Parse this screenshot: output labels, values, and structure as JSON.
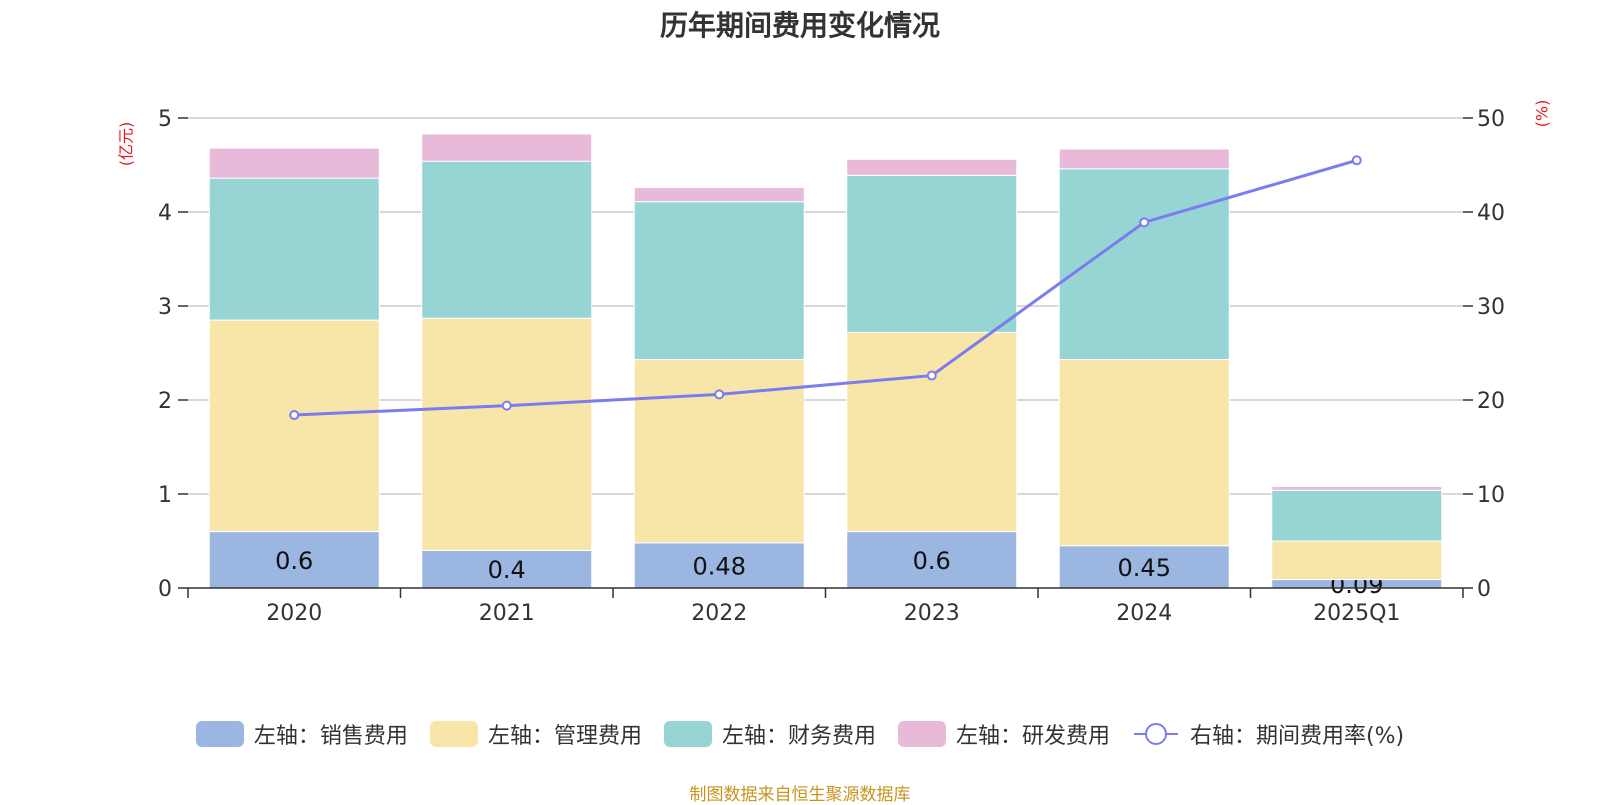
{
  "title": "历年期间费用变化情况",
  "left_unit": "(亿元)",
  "right_unit": "(%)",
  "source": "制图数据来自恒生聚源数据库",
  "legend": [
    {
      "label": "左轴：销售费用",
      "color": "#9bb7e1",
      "kind": "bar"
    },
    {
      "label": "左轴：管理费用",
      "color": "#f8e6a8",
      "kind": "bar"
    },
    {
      "label": "左轴：财务费用",
      "color": "#97d4d4",
      "kind": "bar"
    },
    {
      "label": "左轴：研发费用",
      "color": "#e8b9d9",
      "kind": "bar"
    },
    {
      "label": "右轴：期间费用率(%)",
      "color": "#7a7cf0",
      "kind": "line"
    }
  ],
  "chart_data": {
    "type": "bar",
    "stacked": true,
    "categories": [
      "2020",
      "2021",
      "2022",
      "2023",
      "2024",
      "2025Q1"
    ],
    "series": [
      {
        "name": "左轴：销售费用",
        "axis": "left",
        "color": "#9bb7e1",
        "values": [
          0.6,
          0.4,
          0.48,
          0.6,
          0.45,
          0.09
        ],
        "labels": [
          "0.6",
          "0.4",
          "0.48",
          "0.6",
          "0.45",
          "0.09"
        ]
      },
      {
        "name": "左轴：管理费用",
        "axis": "left",
        "color": "#f8e6a8",
        "values": [
          2.25,
          2.47,
          1.95,
          2.12,
          1.98,
          0.41
        ]
      },
      {
        "name": "左轴：财务费用",
        "axis": "left",
        "color": "#97d4d4",
        "values": [
          1.51,
          1.67,
          1.68,
          1.67,
          2.03,
          0.54
        ]
      },
      {
        "name": "左轴：研发费用",
        "axis": "left",
        "color": "#e8b9d9",
        "values": [
          0.32,
          0.29,
          0.15,
          0.17,
          0.21,
          0.04
        ]
      },
      {
        "name": "右轴：期间费用率(%)",
        "axis": "right",
        "type": "line",
        "color": "#7a7cf0",
        "values": [
          18.4,
          19.4,
          20.6,
          22.6,
          38.9,
          45.5
        ]
      }
    ],
    "left_axis": {
      "range": [
        0,
        5
      ],
      "ticks": [
        0,
        1,
        2,
        3,
        4,
        5
      ]
    },
    "right_axis": {
      "range": [
        0,
        50
      ],
      "ticks": [
        0,
        10,
        20,
        30,
        40,
        50
      ]
    },
    "grid": true,
    "legend_position": "bottom"
  }
}
